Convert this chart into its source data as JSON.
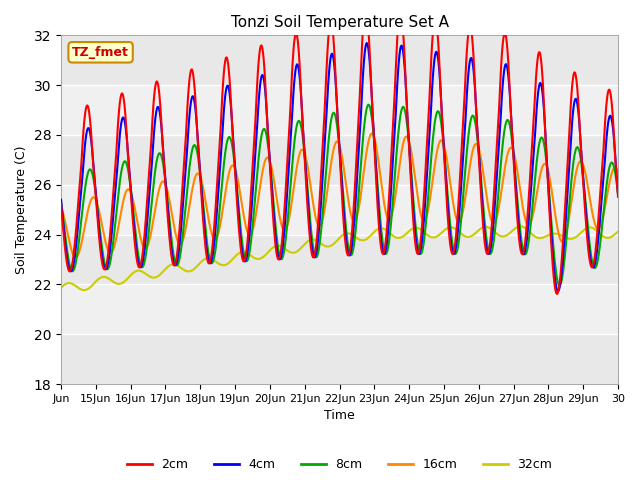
{
  "title": "Tonzi Soil Temperature Set A",
  "xlabel": "Time",
  "ylabel": "Soil Temperature (C)",
  "ylim": [
    18,
    32
  ],
  "xlim": [
    0,
    16
  ],
  "yticks": [
    18,
    20,
    22,
    24,
    26,
    28,
    30,
    32
  ],
  "xtick_labels": [
    "Jun",
    "15Jun",
    "16Jun",
    "17Jun",
    "18Jun",
    "19Jun",
    "20Jun",
    "21Jun",
    "22Jun",
    "23Jun",
    "24Jun",
    "25Jun",
    "26Jun",
    "27Jun",
    "28Jun",
    "29Jun",
    "30"
  ],
  "colors": {
    "2cm": "#ff0000",
    "4cm": "#0000ff",
    "8cm": "#00aa00",
    "16cm": "#ff8800",
    "32cm": "#cccc00"
  },
  "label_box": {
    "text": "TZ_fmet",
    "bg_color": "#ffffcc",
    "text_color": "#cc0000",
    "edge_color": "#cc8800"
  },
  "line_width": 1.5
}
